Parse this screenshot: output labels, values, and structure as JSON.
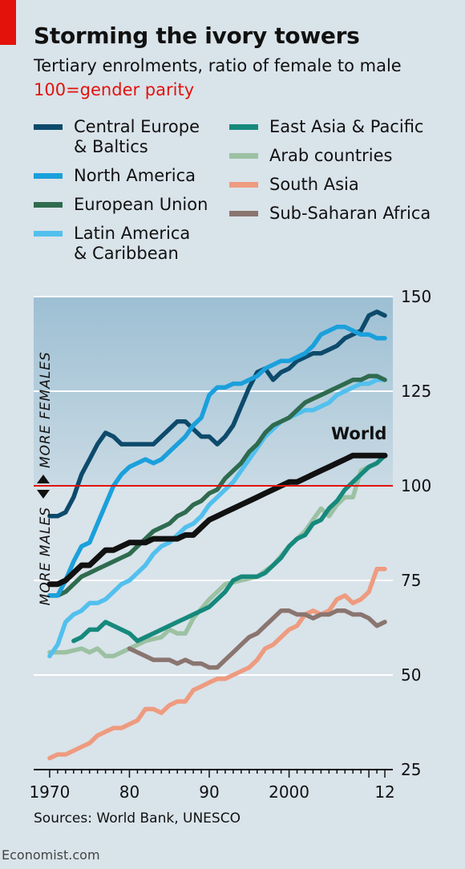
{
  "header": {
    "title": "Storming the ivory towers",
    "subtitle": "Tertiary enrolments, ratio of female to male",
    "parity_note": "100=gender parity"
  },
  "footer": {
    "source": "Sources: World Bank, UNESCO",
    "brand": "Economist.com"
  },
  "legend": {
    "left": [
      {
        "label": "Central Europe",
        "label2": "& Baltics",
        "color": "#0d4a6b"
      },
      {
        "label": "North America",
        "label2": "",
        "color": "#1aa0dc"
      },
      {
        "label": "European Union",
        "label2": "",
        "color": "#2f6b4f"
      },
      {
        "label": "Latin America",
        "label2": "& Caribbean",
        "color": "#52c0ee"
      }
    ],
    "right": [
      {
        "label": "East Asia & Pacific",
        "label2": "",
        "color": "#16897c"
      },
      {
        "label": "Arab countries",
        "label2": "",
        "color": "#9cc1a3"
      },
      {
        "label": "South Asia",
        "label2": "",
        "color": "#ee9b80"
      },
      {
        "label": "Sub-Saharan Africa",
        "label2": "",
        "color": "#8a7570"
      }
    ]
  },
  "chart_data": {
    "type": "line",
    "ylim": [
      25,
      150
    ],
    "yticks": [
      25,
      50,
      75,
      100,
      125,
      150
    ],
    "xlim": [
      1968,
      2013
    ],
    "xticks": [
      {
        "value": 1970,
        "label": "1970"
      },
      {
        "value": 1980,
        "label": "80"
      },
      {
        "value": 1990,
        "label": "90"
      },
      {
        "value": 2000,
        "label": "2000"
      },
      {
        "value": 2012,
        "label": "12"
      }
    ],
    "parity_line": 100,
    "parity_label": "100",
    "annotations": {
      "more_females": "MORE FEMALES",
      "more_males": "MORE MALES",
      "world_label": "World"
    },
    "colors": {
      "parity": "#e3120b",
      "world": "#111111",
      "shade_top": "#9dbfd3",
      "shade_bottom": "#c9dae4"
    },
    "series": [
      {
        "name": "Arab countries",
        "color": "#9cc1a3",
        "x": [
          1970,
          1972,
          1974,
          1975,
          1976,
          1977,
          1978,
          1980,
          1982,
          1984,
          1985,
          1986,
          1987,
          1988,
          1990,
          1991,
          1992,
          1994,
          1996,
          1998,
          2000,
          2001,
          2002,
          2003,
          2004,
          2005,
          2006,
          2007,
          2008,
          2009,
          2010,
          2011,
          2012
        ],
        "y": [
          56,
          56,
          57,
          56,
          57,
          55,
          55,
          57,
          59,
          60,
          62,
          61,
          61,
          65,
          70,
          72,
          74,
          75,
          76,
          79,
          84,
          86,
          88,
          91,
          94,
          92,
          95,
          97,
          97,
          104,
          105,
          106,
          108
        ]
      },
      {
        "name": "South Asia",
        "color": "#ee9b80",
        "x": [
          1970,
          1971,
          1972,
          1973,
          1974,
          1975,
          1976,
          1977,
          1978,
          1979,
          1980,
          1981,
          1982,
          1983,
          1984,
          1985,
          1986,
          1987,
          1988,
          1989,
          1990,
          1991,
          1992,
          1993,
          1994,
          1995,
          1996,
          1997,
          1998,
          1999,
          2000,
          2001,
          2002,
          2003,
          2004,
          2005,
          2006,
          2007,
          2008,
          2009,
          2010,
          2011,
          2012
        ],
        "y": [
          28,
          29,
          29,
          30,
          31,
          32,
          34,
          35,
          36,
          36,
          37,
          38,
          41,
          41,
          40,
          42,
          43,
          43,
          46,
          47,
          48,
          49,
          49,
          50,
          51,
          52,
          54,
          57,
          58,
          60,
          62,
          63,
          66,
          67,
          66,
          67,
          70,
          71,
          69,
          70,
          72,
          78,
          78
        ]
      },
      {
        "name": "Sub-Saharan Africa",
        "color": "#8a7570",
        "x": [
          1980,
          1981,
          1982,
          1983,
          1984,
          1985,
          1986,
          1987,
          1988,
          1989,
          1990,
          1991,
          1992,
          1993,
          1994,
          1995,
          1996,
          1997,
          1998,
          1999,
          2000,
          2001,
          2002,
          2003,
          2004,
          2005,
          2006,
          2007,
          2008,
          2009,
          2010,
          2011,
          2012
        ],
        "y": [
          57,
          56,
          55,
          54,
          54,
          54,
          53,
          54,
          53,
          53,
          52,
          52,
          54,
          56,
          58,
          60,
          61,
          63,
          65,
          67,
          67,
          66,
          66,
          65,
          66,
          66,
          67,
          67,
          66,
          66,
          65,
          63,
          64
        ]
      },
      {
        "name": "East Asia & Pacific",
        "color": "#16897c",
        "x": [
          1973,
          1974,
          1975,
          1976,
          1977,
          1978,
          1979,
          1980,
          1981,
          1982,
          1983,
          1984,
          1985,
          1986,
          1987,
          1988,
          1989,
          1990,
          1991,
          1992,
          1993,
          1994,
          1995,
          1996,
          1997,
          1998,
          1999,
          2000,
          2001,
          2002,
          2003,
          2004,
          2005,
          2006,
          2007,
          2008,
          2009,
          2010,
          2011,
          2012
        ],
        "y": [
          59,
          60,
          62,
          62,
          64,
          63,
          62,
          61,
          59,
          60,
          61,
          62,
          63,
          64,
          65,
          66,
          67,
          68,
          70,
          72,
          75,
          76,
          76,
          76,
          77,
          79,
          81,
          84,
          86,
          87,
          90,
          91,
          94,
          96,
          99,
          101,
          103,
          105,
          106,
          108
        ]
      },
      {
        "name": "Latin America & Caribbean",
        "color": "#52c0ee",
        "x": [
          1970,
          1971,
          1972,
          1973,
          1974,
          1975,
          1976,
          1977,
          1978,
          1979,
          1980,
          1981,
          1982,
          1983,
          1984,
          1985,
          1986,
          1987,
          1988,
          1989,
          1990,
          1991,
          1992,
          1993,
          1994,
          1995,
          1996,
          1997,
          1998,
          1999,
          2000,
          2001,
          2002,
          2003,
          2004,
          2005,
          2006,
          2007,
          2008,
          2009,
          2010,
          2011,
          2012
        ],
        "y": [
          55,
          58,
          64,
          66,
          67,
          69,
          69,
          70,
          72,
          74,
          75,
          77,
          79,
          82,
          84,
          85,
          87,
          89,
          90,
          92,
          95,
          97,
          99,
          101,
          104,
          107,
          110,
          113,
          115,
          117,
          118,
          119,
          120,
          120,
          121,
          122,
          124,
          125,
          126,
          127,
          127,
          128,
          128
        ]
      },
      {
        "name": "European Union",
        "color": "#2f6b4f",
        "x": [
          1970,
          1971,
          1972,
          1973,
          1974,
          1975,
          1976,
          1977,
          1978,
          1979,
          1980,
          1981,
          1982,
          1983,
          1984,
          1985,
          1986,
          1987,
          1988,
          1989,
          1990,
          1991,
          1992,
          1993,
          1994,
          1995,
          1996,
          1997,
          1998,
          1999,
          2000,
          2001,
          2002,
          2003,
          2004,
          2005,
          2006,
          2007,
          2008,
          2009,
          2010,
          2011,
          2012
        ],
        "y": [
          71,
          71,
          72,
          74,
          76,
          77,
          78,
          79,
          80,
          81,
          82,
          84,
          86,
          88,
          89,
          90,
          92,
          93,
          95,
          96,
          98,
          99,
          102,
          104,
          106,
          109,
          111,
          114,
          116,
          117,
          118,
          120,
          122,
          123,
          124,
          125,
          126,
          127,
          128,
          128,
          129,
          129,
          128
        ]
      },
      {
        "name": "Central Europe & Baltics",
        "color": "#0d4a6b",
        "x": [
          1970,
          1971,
          1972,
          1973,
          1974,
          1975,
          1976,
          1977,
          1978,
          1979,
          1980,
          1981,
          1982,
          1983,
          1984,
          1985,
          1986,
          1987,
          1988,
          1989,
          1990,
          1991,
          1992,
          1993,
          1994,
          1995,
          1996,
          1997,
          1998,
          1999,
          2000,
          2001,
          2002,
          2003,
          2004,
          2005,
          2006,
          2007,
          2008,
          2009,
          2010,
          2011,
          2012
        ],
        "y": [
          92,
          92,
          93,
          97,
          103,
          107,
          111,
          114,
          113,
          111,
          111,
          111,
          111,
          111,
          113,
          115,
          117,
          117,
          115,
          113,
          113,
          111,
          113,
          116,
          121,
          126,
          130,
          131,
          128,
          130,
          131,
          133,
          134,
          135,
          135,
          136,
          137,
          139,
          140,
          141,
          145,
          146,
          145
        ]
      },
      {
        "name": "North America",
        "color": "#1aa0dc",
        "x": [
          1970,
          1971,
          1972,
          1973,
          1974,
          1975,
          1976,
          1977,
          1978,
          1979,
          1980,
          1981,
          1982,
          1983,
          1984,
          1985,
          1986,
          1987,
          1988,
          1989,
          1990,
          1991,
          1992,
          1993,
          1994,
          1995,
          1996,
          1997,
          1998,
          1999,
          2000,
          2001,
          2002,
          2003,
          2004,
          2005,
          2006,
          2007,
          2008,
          2009,
          2010,
          2011,
          2012
        ],
        "y": [
          71,
          71,
          75,
          80,
          84,
          85,
          90,
          95,
          100,
          103,
          105,
          106,
          107,
          106,
          107,
          109,
          111,
          113,
          116,
          118,
          124,
          126,
          126,
          127,
          127,
          128,
          129,
          131,
          132,
          133,
          133,
          134,
          135,
          137,
          140,
          141,
          142,
          142,
          141,
          140,
          140,
          139,
          139
        ]
      },
      {
        "name": "World",
        "color": "#111111",
        "x": [
          1970,
          1971,
          1972,
          1973,
          1974,
          1975,
          1976,
          1977,
          1978,
          1979,
          1980,
          1981,
          1982,
          1983,
          1984,
          1985,
          1986,
          1987,
          1988,
          1989,
          1990,
          1991,
          1992,
          1993,
          1994,
          1995,
          1996,
          1997,
          1998,
          1999,
          2000,
          2001,
          2002,
          2003,
          2004,
          2005,
          2006,
          2007,
          2008,
          2009,
          2010,
          2011,
          2012
        ],
        "y": [
          74,
          74,
          75,
          77,
          79,
          79,
          81,
          83,
          83,
          84,
          85,
          85,
          85,
          86,
          86,
          86,
          86,
          87,
          87,
          89,
          91,
          92,
          93,
          94,
          95,
          96,
          97,
          98,
          99,
          100,
          101,
          101,
          102,
          103,
          104,
          105,
          106,
          107,
          108,
          108,
          108,
          108,
          108
        ]
      }
    ]
  }
}
